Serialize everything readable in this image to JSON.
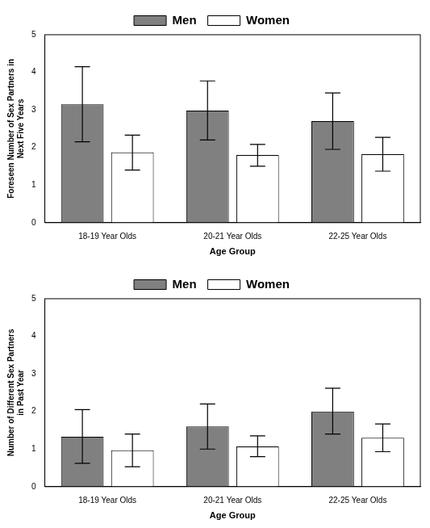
{
  "chart_data": [
    {
      "type": "bar",
      "x_label": "Age Group",
      "y_label": "Foreseen Number of Sex Partners in Next Five Years",
      "categories": [
        "18-19 Year Olds",
        "20-21 Year Olds",
        "22-25 Year Olds"
      ],
      "series": [
        {
          "name": "Men",
          "color": "#808080",
          "values": [
            3.15,
            2.98,
            2.7
          ],
          "error_low": [
            2.15,
            2.2,
            1.95
          ],
          "error_high": [
            4.15,
            3.77,
            3.45
          ]
        },
        {
          "name": "Women",
          "color": "#ffffff",
          "values": [
            1.87,
            1.8,
            1.82
          ],
          "error_low": [
            1.4,
            1.5,
            1.37
          ],
          "error_high": [
            2.33,
            2.08,
            2.27
          ]
        }
      ],
      "ylim": [
        0,
        5
      ],
      "yticks": [
        0,
        1,
        2,
        3,
        4,
        5
      ],
      "grid": false,
      "legend": "top"
    },
    {
      "type": "bar",
      "x_label": "Age Group",
      "y_label": "Number of Different Sex Partners in Past Year",
      "categories": [
        "18-19 Year Olds",
        "20-21 Year Olds",
        "22-25 Year Olds"
      ],
      "series": [
        {
          "name": "Men",
          "color": "#808080",
          "values": [
            1.33,
            1.6,
            2.0
          ],
          "error_low": [
            0.62,
            1.0,
            1.4
          ],
          "error_high": [
            2.05,
            2.2,
            2.62
          ]
        },
        {
          "name": "Women",
          "color": "#ffffff",
          "values": [
            0.97,
            1.07,
            1.3
          ],
          "error_low": [
            0.53,
            0.8,
            0.93
          ],
          "error_high": [
            1.4,
            1.35,
            1.67
          ]
        }
      ],
      "ylim": [
        0,
        5
      ],
      "yticks": [
        0,
        1,
        2,
        3,
        4,
        5
      ],
      "grid": false,
      "legend": "top"
    }
  ]
}
